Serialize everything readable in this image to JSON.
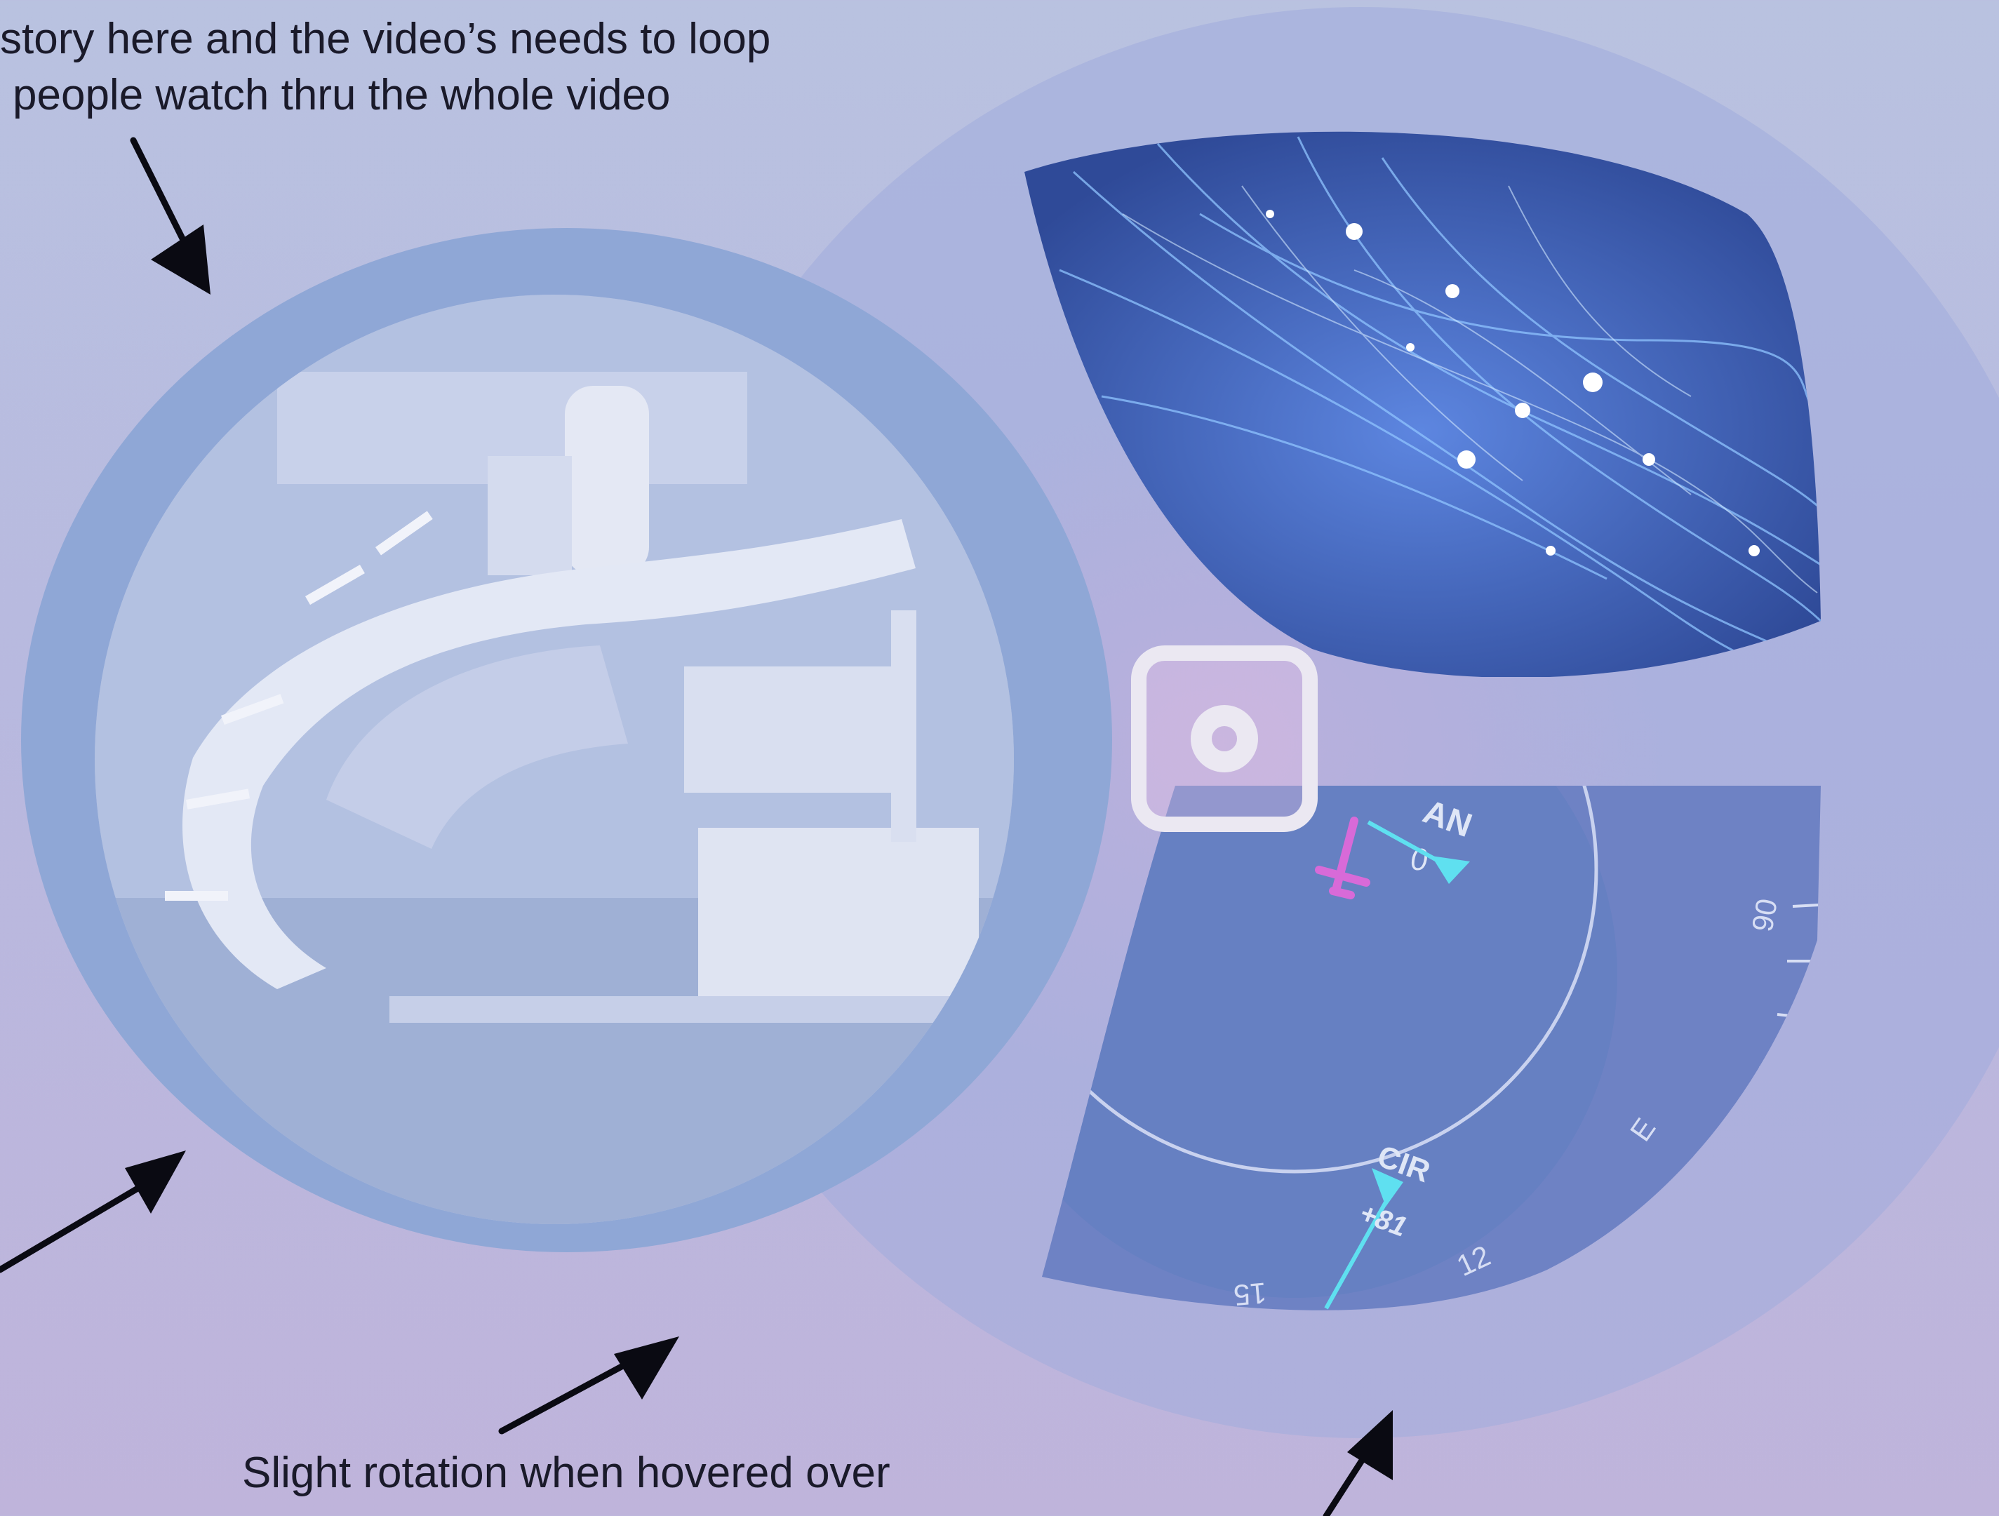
{
  "annotations": {
    "top_line_1": "story here and the video’s needs to loop",
    "top_line_2": "people watch thru the whole video",
    "bottom_line_1": "Slight rotation when hovered over"
  },
  "radar": {
    "label_top": "AN",
    "label_zero": "0",
    "label_cir": "CIR",
    "label_speed": "+81",
    "tick_90": "90",
    "tick_e": "E",
    "tick_12": "12",
    "tick_15": "15"
  },
  "icons": {
    "center_button": "record-icon"
  },
  "colors": {
    "background_top": "#b9c2e0",
    "background_bottom": "#bfb4db",
    "ring": "#a0acdc",
    "video_frame": "#8fa7d6",
    "button": "#ebe8f2",
    "radar_face": "#6e82c4",
    "network_dark": "#3d5aa8"
  }
}
